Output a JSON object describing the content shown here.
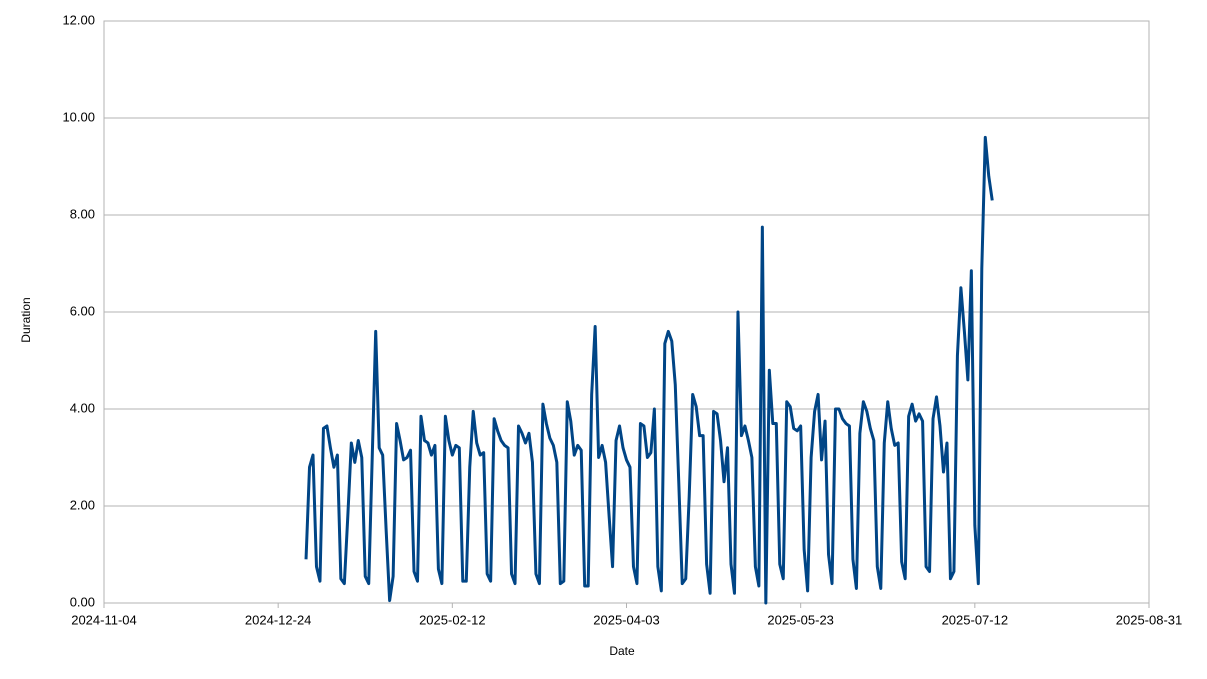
{
  "chart_data": {
    "type": "line",
    "x_label": "Date",
    "y_label": "Duration",
    "xlim": [
      "2024-11-04",
      "2025-08-31"
    ],
    "xticks": [
      "2024-11-04",
      "2024-12-24",
      "2025-02-12",
      "2025-04-03",
      "2025-05-23",
      "2025-07-12",
      "2025-08-31"
    ],
    "ylim": [
      0,
      12
    ],
    "yticks": [
      {
        "value": 0,
        "label": "0.00"
      },
      {
        "value": 2,
        "label": "2.00"
      },
      {
        "value": 4,
        "label": "4.00"
      },
      {
        "value": 6,
        "label": "6.00"
      },
      {
        "value": 8,
        "label": "8.00"
      },
      {
        "value": 10,
        "label": "10.00"
      },
      {
        "value": 12,
        "label": "12.00"
      }
    ],
    "grid": true,
    "x": [
      "2025-01-01",
      "2025-01-02",
      "2025-01-03",
      "2025-01-04",
      "2025-01-05",
      "2025-01-06",
      "2025-01-07",
      "2025-01-08",
      "2025-01-09",
      "2025-01-10",
      "2025-01-11",
      "2025-01-12",
      "2025-01-13",
      "2025-01-14",
      "2025-01-15",
      "2025-01-16",
      "2025-01-17",
      "2025-01-18",
      "2025-01-19",
      "2025-01-20",
      "2025-01-21",
      "2025-01-22",
      "2025-01-23",
      "2025-01-24",
      "2025-01-25",
      "2025-01-26",
      "2025-01-27",
      "2025-01-28",
      "2025-01-29",
      "2025-01-30",
      "2025-01-31",
      "2025-02-01",
      "2025-02-02",
      "2025-02-03",
      "2025-02-04",
      "2025-02-05",
      "2025-02-06",
      "2025-02-07",
      "2025-02-08",
      "2025-02-09",
      "2025-02-10",
      "2025-02-11",
      "2025-02-12",
      "2025-02-13",
      "2025-02-14",
      "2025-02-15",
      "2025-02-16",
      "2025-02-17",
      "2025-02-18",
      "2025-02-19",
      "2025-02-20",
      "2025-02-21",
      "2025-02-22",
      "2025-02-23",
      "2025-02-24",
      "2025-02-25",
      "2025-02-26",
      "2025-02-27",
      "2025-02-28",
      "2025-03-01",
      "2025-03-02",
      "2025-03-03",
      "2025-03-04",
      "2025-03-05",
      "2025-03-06",
      "2025-03-07",
      "2025-03-08",
      "2025-03-09",
      "2025-03-10",
      "2025-03-11",
      "2025-03-12",
      "2025-03-13",
      "2025-03-14",
      "2025-03-15",
      "2025-03-16",
      "2025-03-17",
      "2025-03-18",
      "2025-03-19",
      "2025-03-20",
      "2025-03-21",
      "2025-03-22",
      "2025-03-23",
      "2025-03-24",
      "2025-03-25",
      "2025-03-26",
      "2025-03-27",
      "2025-03-28",
      "2025-03-29",
      "2025-03-30",
      "2025-03-31",
      "2025-04-01",
      "2025-04-02",
      "2025-04-03",
      "2025-04-04",
      "2025-04-05",
      "2025-04-06",
      "2025-04-07",
      "2025-04-08",
      "2025-04-09",
      "2025-04-10",
      "2025-04-11",
      "2025-04-12",
      "2025-04-13",
      "2025-04-14",
      "2025-04-15",
      "2025-04-16",
      "2025-04-17",
      "2025-04-18",
      "2025-04-19",
      "2025-04-20",
      "2025-04-21",
      "2025-04-22",
      "2025-04-23",
      "2025-04-24",
      "2025-04-25",
      "2025-04-26",
      "2025-04-27",
      "2025-04-28",
      "2025-04-29",
      "2025-04-30",
      "2025-05-01",
      "2025-05-02",
      "2025-05-03",
      "2025-05-04",
      "2025-05-05",
      "2025-05-06",
      "2025-05-07",
      "2025-05-08",
      "2025-05-09",
      "2025-05-10",
      "2025-05-11",
      "2025-05-12",
      "2025-05-13",
      "2025-05-14",
      "2025-05-15",
      "2025-05-16",
      "2025-05-17",
      "2025-05-18",
      "2025-05-19",
      "2025-05-20",
      "2025-05-21",
      "2025-05-22",
      "2025-05-23",
      "2025-05-24",
      "2025-05-25",
      "2025-05-26",
      "2025-05-27",
      "2025-05-28",
      "2025-05-29",
      "2025-05-30",
      "2025-05-31",
      "2025-06-01",
      "2025-06-02",
      "2025-06-03",
      "2025-06-04",
      "2025-06-05",
      "2025-06-06",
      "2025-06-07",
      "2025-06-08",
      "2025-06-09",
      "2025-06-10",
      "2025-06-11",
      "2025-06-12",
      "2025-06-13",
      "2025-06-14",
      "2025-06-15",
      "2025-06-16",
      "2025-06-17",
      "2025-06-18",
      "2025-06-19",
      "2025-06-20",
      "2025-06-21",
      "2025-06-22",
      "2025-06-23",
      "2025-06-24",
      "2025-06-25",
      "2025-06-26",
      "2025-06-27",
      "2025-06-28",
      "2025-06-29",
      "2025-06-30",
      "2025-07-01",
      "2025-07-02",
      "2025-07-03",
      "2025-07-04",
      "2025-07-05",
      "2025-07-06",
      "2025-07-07",
      "2025-07-08",
      "2025-07-09",
      "2025-07-10",
      "2025-07-11",
      "2025-07-12",
      "2025-07-13",
      "2025-07-14",
      "2025-07-15",
      "2025-07-16",
      "2025-07-17"
    ],
    "series": [
      {
        "name": "Duration",
        "color": "#004586",
        "values": [
          0.9,
          2.8,
          3.05,
          0.75,
          0.45,
          3.6,
          3.65,
          3.2,
          2.8,
          3.05,
          0.5,
          0.4,
          1.8,
          3.3,
          2.9,
          3.35,
          3.0,
          0.55,
          0.4,
          3.0,
          5.6,
          3.2,
          3.05,
          1.5,
          0.05,
          0.55,
          3.7,
          3.35,
          2.95,
          3.0,
          3.15,
          0.65,
          0.45,
          3.85,
          3.35,
          3.3,
          3.05,
          3.25,
          0.7,
          0.4,
          3.85,
          3.35,
          3.05,
          3.25,
          3.2,
          0.45,
          0.45,
          2.8,
          3.95,
          3.3,
          3.05,
          3.1,
          0.6,
          0.45,
          3.8,
          3.55,
          3.35,
          3.25,
          3.2,
          0.6,
          0.4,
          3.65,
          3.5,
          3.3,
          3.5,
          2.9,
          0.6,
          0.4,
          4.1,
          3.7,
          3.4,
          3.25,
          2.9,
          0.4,
          0.45,
          4.15,
          3.75,
          3.05,
          3.25,
          3.15,
          0.35,
          0.35,
          4.3,
          5.7,
          3.0,
          3.25,
          2.9,
          1.8,
          0.75,
          3.35,
          3.65,
          3.2,
          2.95,
          2.8,
          0.75,
          0.4,
          3.7,
          3.65,
          3.0,
          3.1,
          4.0,
          0.75,
          0.25,
          5.35,
          5.6,
          5.4,
          4.5,
          2.5,
          0.4,
          0.5,
          2.2,
          4.3,
          4.05,
          3.45,
          3.45,
          0.8,
          0.2,
          3.95,
          3.9,
          3.35,
          2.5,
          3.2,
          0.8,
          0.2,
          6.0,
          3.45,
          3.65,
          3.35,
          3.0,
          0.75,
          0.35,
          7.75,
          0.0,
          4.8,
          3.7,
          3.7,
          0.8,
          0.5,
          4.15,
          4.05,
          3.6,
          3.55,
          3.65,
          1.1,
          0.25,
          3.0,
          3.95,
          4.3,
          2.95,
          3.75,
          1.0,
          0.4,
          4.0,
          4.0,
          3.8,
          3.7,
          3.65,
          0.9,
          0.3,
          3.5,
          4.15,
          3.95,
          3.6,
          3.35,
          0.75,
          0.3,
          3.3,
          4.15,
          3.6,
          3.25,
          3.3,
          0.85,
          0.5,
          3.85,
          4.1,
          3.75,
          3.9,
          3.75,
          0.75,
          0.65,
          3.8,
          4.25,
          3.65,
          2.7,
          3.3,
          0.5,
          0.65,
          5.1,
          6.5,
          5.6,
          4.6,
          6.85,
          1.6,
          0.4,
          6.9,
          9.6,
          8.8,
          8.3
        ]
      }
    ]
  }
}
